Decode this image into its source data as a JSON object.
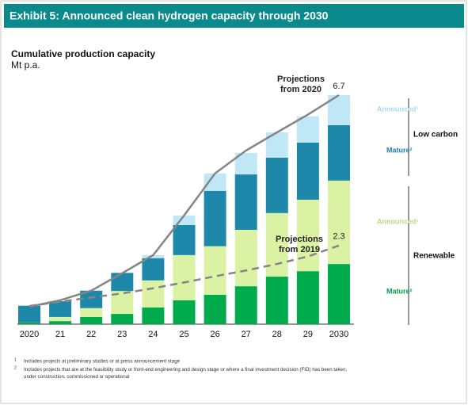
{
  "chart_data": {
    "type": "stacked_bar_line",
    "title": "Exhibit 5: Announced clean hydrogen capacity through 2030",
    "subtitle": "Cumulative production capacity",
    "unit": "Mt p.a.",
    "categories": [
      "2020",
      "21",
      "22",
      "23",
      "24",
      "25",
      "26",
      "27",
      "28",
      "29",
      "2030"
    ],
    "series": [
      {
        "name": "Mature²",
        "color": "#00ab4e",
        "label_color": "#00a14b",
        "values": [
          0.05,
          0.09,
          0.21,
          0.3,
          0.49,
          0.7,
          0.86,
          1.11,
          1.39,
          1.55,
          1.76
        ]
      },
      {
        "name": "Announced¹",
        "color": "#dbf2a4",
        "label_color": "#b9dc7a",
        "values": [
          0.0,
          0.12,
          0.26,
          0.67,
          0.79,
          1.32,
          1.42,
          1.65,
          1.86,
          2.09,
          2.44
        ]
      },
      {
        "name": "Mature²",
        "color": "#1e88ab",
        "label_color": "#1e7fa4",
        "values": [
          0.49,
          0.46,
          0.51,
          0.53,
          0.65,
          0.88,
          1.62,
          1.62,
          1.62,
          1.67,
          1.62
        ]
      },
      {
        "name": "Announced¹",
        "color": "#c0e7f6",
        "label_color": "#a6dbef",
        "values": [
          0.0,
          0.0,
          0.0,
          0.0,
          0.09,
          0.28,
          0.51,
          0.63,
          0.74,
          0.77,
          0.88
        ]
      }
    ],
    "lines": [
      {
        "name": "Projections from 2020",
        "color": "#858585",
        "dashed": false,
        "values": [
          0.51,
          0.7,
          0.98,
          1.49,
          2.02,
          3.18,
          4.41,
          5.08,
          5.61,
          6.13,
          6.7
        ]
      },
      {
        "name": "Projections from 2019",
        "color": "#858585",
        "dashed": true,
        "values": [
          0.53,
          0.66,
          0.78,
          0.9,
          1.05,
          1.22,
          1.4,
          1.57,
          1.76,
          1.98,
          2.3
        ]
      }
    ],
    "groups": [
      "Low carbon",
      "Renewable"
    ],
    "ylim": [
      0,
      6.7
    ],
    "footnotes": [
      {
        "mark": "1",
        "text": "Includes projects at preliminary studies or at press announcement stage"
      },
      {
        "mark": "2",
        "text": "Includes projects that are at the feasibility study or front-end engineering and design stage or where a final investment decision (FID) has been taken, under construction, commissioned or operational"
      }
    ]
  }
}
